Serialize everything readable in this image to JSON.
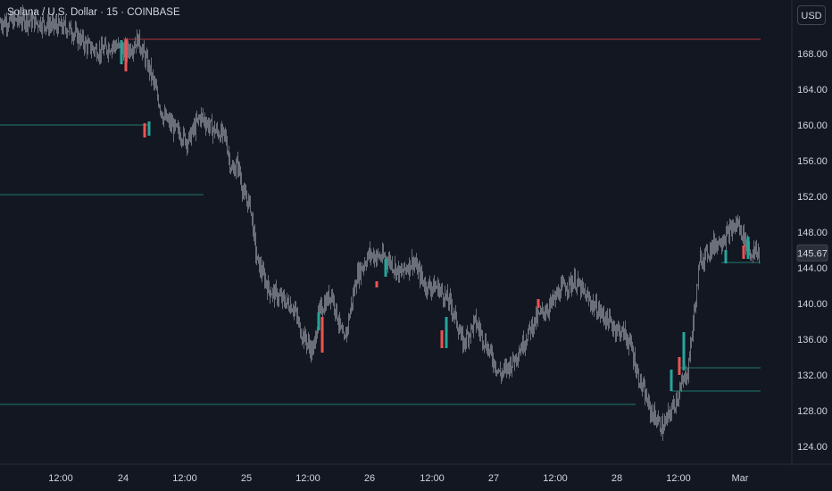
{
  "header": {
    "symbol_title": "Solana / U.S. Dollar · 15 · COINBASE",
    "currency_label": "USD"
  },
  "colors": {
    "background": "#131722",
    "up_candle": "#26a69a",
    "down_candle": "#ef5350",
    "neutral_wick": "#6b6f7a",
    "resistance_line": "#b2373c",
    "support_line": "#1f7a6e"
  },
  "chart_data": {
    "type": "line",
    "x_ticks": [
      "12:00",
      "24",
      "12:00",
      "25",
      "12:00",
      "26",
      "12:00",
      "27",
      "12:00",
      "28",
      "12:00",
      "Mar"
    ],
    "y_ticks": [
      "124.00",
      "128.00",
      "132.00",
      "136.00",
      "140.00",
      "144.00",
      "148.00",
      "152.00",
      "156.00",
      "160.00",
      "164.00",
      "168.00"
    ],
    "ylim": [
      122,
      172
    ],
    "current_price": "145.67",
    "series": [
      {
        "x": [
          0,
          4,
          8,
          11,
          14,
          16,
          18,
          20,
          21,
          22,
          24,
          26,
          28,
          30,
          32,
          34,
          36,
          37,
          38,
          39,
          40,
          41,
          43,
          45,
          47,
          48,
          50,
          51,
          53,
          55,
          57,
          59,
          62,
          64,
          66,
          68,
          70,
          72,
          73,
          74,
          76,
          78,
          80,
          82,
          84,
          85,
          86,
          88,
          90,
          92,
          94,
          96,
          98,
          100,
          101,
          102,
          104,
          106,
          108,
          110,
          112,
          113,
          114,
          116,
          118,
          120
        ],
        "y": [
          171.5,
          171.8,
          171.2,
          170.8,
          168.8,
          168.2,
          169.0,
          168.3,
          168.7,
          169.6,
          166.0,
          161.0,
          159.5,
          158.2,
          161.0,
          159.5,
          158.7,
          154.8,
          155.6,
          152.0,
          151.0,
          145.0,
          141.5,
          140.5,
          139.5,
          137.0,
          134.5,
          139.0,
          141.2,
          135.5,
          143.0,
          145.5,
          145.0,
          143.3,
          144.8,
          142.0,
          141.8,
          140.0,
          138.0,
          135.5,
          138.0,
          135.0,
          132.0,
          133.5,
          136.0,
          137.5,
          138.5,
          139.8,
          141.8,
          142.5,
          140.5,
          139.0,
          137.5,
          136.5,
          135.0,
          132.0,
          128.0,
          126.0,
          129.0,
          132.5,
          145.0,
          145.5,
          146.5,
          147.5,
          149.0,
          145.7
        ]
      }
    ],
    "horizontal_levels": [
      {
        "value": 169.6,
        "role": "resistance"
      },
      {
        "value": 160.0,
        "role": "support"
      },
      {
        "value": 152.2,
        "role": "support"
      },
      {
        "value": 128.7,
        "role": "support"
      },
      {
        "value": 144.6,
        "role": "support"
      },
      {
        "value": 132.8,
        "role": "support"
      },
      {
        "value": 130.2,
        "role": "support"
      }
    ]
  }
}
